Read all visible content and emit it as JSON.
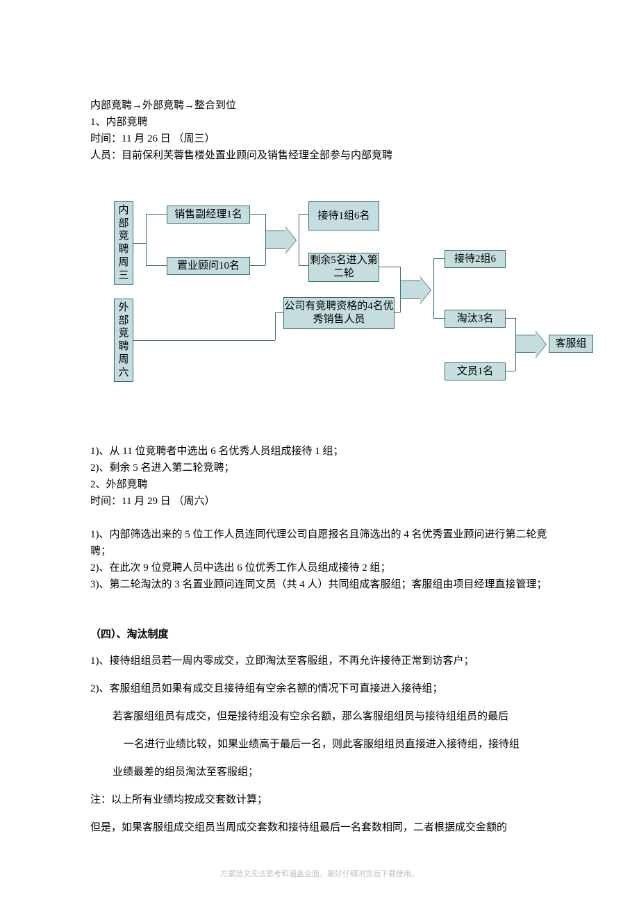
{
  "intro": {
    "line1": "内部竞聘→外部竞聘→整合到位",
    "line2": "1、内部竞聘",
    "line3": "时间：11 月 26 日   （周三）",
    "line4": "人员：目前保利芙蓉售楼处置业顾问及销售经理全部参与内部竞聘"
  },
  "flow": {
    "left1": "内部竞聘周三",
    "left2": "外部竞聘周六",
    "b1": "销售副经理1名",
    "b2": "置业顾问10名",
    "r1": "接待1组6名",
    "r2": "剩余5名进入第二轮",
    "r3": "公司有竞聘资格的4名优秀销售人员",
    "c1": "接待2组6",
    "c2": "淘汰3名",
    "c3": "文员1名",
    "final": "客服组"
  },
  "mid": {
    "m1": "1)、从 11 位竞聘者中选出 6 名优秀人员组成接待 1 组；",
    "m2": "2)、剩余 5 名进入第二轮竞聘；",
    "m3": "2、外部竞聘",
    "m4": "时间：11 月 29 日    （周六）",
    "m5": "1)、内部筛选出来的 5 位工作人员连同代理公司自愿报名且筛选出的 4 名优秀置业顾问进行第二轮竞聘；",
    "m6": "2)、在此次 9 位竞聘人员中选出 6 位优秀工作人员组成接待 2 组；",
    "m7": "3)、第二轮淘汰的 3 名置业顾问连同文员（共 4 人）共同组成客服组；客服组由项目经理直接管理；"
  },
  "section4": {
    "title": "（四）、淘汰制度",
    "p1": "1)、接待组组员若一周内零成交，立即淘汰至客服组，不再允许接待正常到访客户；",
    "p2": "2)、客服组组员如果有成交且接待组有空余名额的情况下可直接进入接待组；",
    "p3": "若客服组组员有成交，但是接待组没有空余名额，那么客服组组员与接待组组员的最后",
    "p4": "一名进行业绩比较，如果业绩高于最后一名，则此客服组组员直接进入接待组，接待组",
    "p5": "业绩最差的组员淘汰至客服组；",
    "note": "注：以上所有业绩均按成交套数计算；",
    "p6": "但是，如果客服组成交组员当周成交套数和接待组最后一名套数相同，二者根据成交金额的"
  },
  "footer": "方案范文无法思考和涵盖全面，最好仔细浏览后下载使用。",
  "colors": {
    "box_bg": "#c5ddde",
    "box_border": "#3a6a6c",
    "text": "#000000",
    "footer": "#bfbfbf"
  }
}
